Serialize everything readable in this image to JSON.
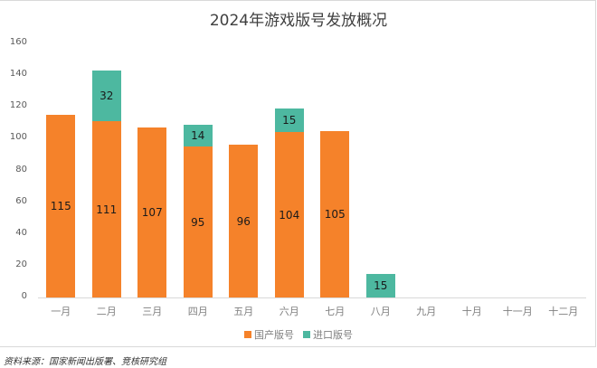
{
  "chart_data": {
    "type": "bar",
    "stacked": true,
    "title": "2024年游戏版号发放概况",
    "xlabel": "",
    "ylabel": "",
    "ylim": [
      0,
      160
    ],
    "yticks": [
      0,
      20,
      40,
      60,
      80,
      100,
      120,
      140,
      160
    ],
    "grid": false,
    "legend_position": "bottom",
    "categories": [
      "一月",
      "二月",
      "三月",
      "四月",
      "五月",
      "六月",
      "七月",
      "八月",
      "九月",
      "十月",
      "十一月",
      "十二月"
    ],
    "series": [
      {
        "name": "国产版号",
        "color": "#f5822a",
        "values": [
          115,
          111,
          107,
          95,
          96,
          104,
          105,
          null,
          null,
          null,
          null,
          null
        ]
      },
      {
        "name": "进口版号",
        "color": "#4db8a0",
        "values": [
          null,
          32,
          null,
          14,
          null,
          15,
          null,
          15,
          null,
          null,
          null,
          null
        ]
      }
    ],
    "data_labels": {
      "国产版号": [
        "115",
        "111",
        "107",
        "95",
        "96",
        "104",
        "105",
        "",
        "",
        "",
        "",
        ""
      ],
      "进口版号": [
        "",
        "32",
        "",
        "14",
        "",
        "15",
        "",
        "15",
        "",
        "",
        "",
        ""
      ]
    }
  },
  "title": "2024年游戏版号发放概况",
  "yticks": [
    "160",
    "140",
    "120",
    "100",
    "80",
    "60",
    "40",
    "20",
    "0"
  ],
  "months": [
    "一月",
    "二月",
    "三月",
    "四月",
    "五月",
    "六月",
    "七月",
    "八月",
    "九月",
    "十月",
    "十一月",
    "十二月"
  ],
  "legend": {
    "domestic": "国产版号",
    "imported": "进口版号"
  },
  "colors": {
    "domestic": "#f5822a",
    "imported": "#4db8a0"
  },
  "bars": [
    {
      "domestic": 115,
      "imported": 0,
      "domestic_label": "115",
      "imported_label": ""
    },
    {
      "domestic": 111,
      "imported": 32,
      "domestic_label": "111",
      "imported_label": "32"
    },
    {
      "domestic": 107,
      "imported": 0,
      "domestic_label": "107",
      "imported_label": ""
    },
    {
      "domestic": 95,
      "imported": 14,
      "domestic_label": "95",
      "imported_label": "14"
    },
    {
      "domestic": 96,
      "imported": 0,
      "domestic_label": "96",
      "imported_label": ""
    },
    {
      "domestic": 104,
      "imported": 15,
      "domestic_label": "104",
      "imported_label": "15"
    },
    {
      "domestic": 105,
      "imported": 0,
      "domestic_label": "105",
      "imported_label": ""
    },
    {
      "domestic": 0,
      "imported": 15,
      "domestic_label": "",
      "imported_label": "15"
    }
  ],
  "source": "资料来源：国家新闻出版署、竞核研究组"
}
